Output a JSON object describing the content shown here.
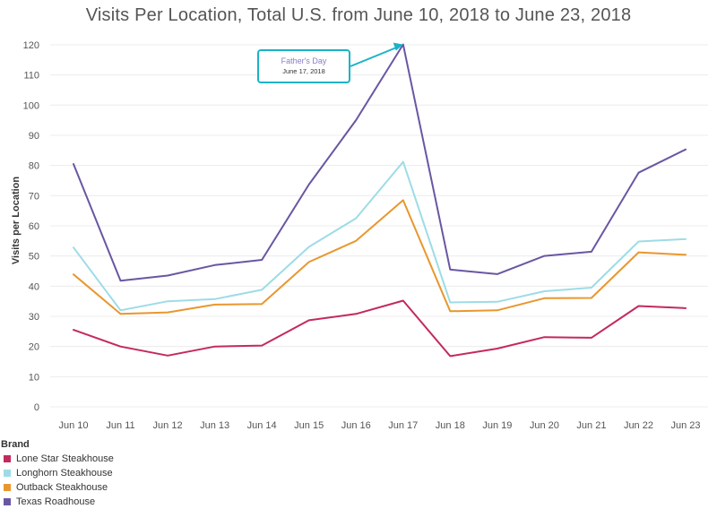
{
  "chart_data": {
    "type": "line",
    "title": "Visits Per Location, Total U.S. from June 10, 2018 to June 23, 2018",
    "xlabel": "",
    "ylabel": "Visits per Location",
    "categories": [
      "Jun 10",
      "Jun 11",
      "Jun 12",
      "Jun 13",
      "Jun 14",
      "Jun 15",
      "Jun 16",
      "Jun 17",
      "Jun 18",
      "Jun 19",
      "Jun 20",
      "Jun 21",
      "Jun 22",
      "Jun 23"
    ],
    "yticks": [
      0,
      10,
      20,
      30,
      40,
      50,
      60,
      70,
      80,
      90,
      100,
      110,
      120
    ],
    "ylim": [
      0,
      125
    ],
    "grid": true,
    "legend_title": "Brand",
    "legend_position": "bottom-left",
    "series": [
      {
        "name": "Lone Star Steakhouse",
        "color": "#c4295e",
        "values": [
          25.5,
          20,
          17,
          20,
          20.3,
          28.7,
          30.8,
          35.2,
          16.8,
          19.3,
          23.1,
          22.9,
          33.4,
          32.7
        ]
      },
      {
        "name": "Longhorn Steakhouse",
        "color": "#9ddce6",
        "values": [
          52.8,
          32,
          35,
          35.7,
          38.8,
          53,
          62.5,
          81.2,
          34.6,
          34.8,
          38.3,
          39.5,
          54.8,
          55.6
        ]
      },
      {
        "name": "Outback Steakhouse",
        "color": "#e8972f",
        "values": [
          43.9,
          30.8,
          31.3,
          33.9,
          34.1,
          48,
          55,
          68.5,
          31.7,
          32,
          36,
          36.1,
          51.2,
          50.4
        ]
      },
      {
        "name": "Texas Roadhouse",
        "color": "#6a56a2",
        "values": [
          80.5,
          41.8,
          43.5,
          47,
          48.7,
          73.7,
          95,
          120.1,
          45.5,
          44,
          50,
          51.4,
          77.6,
          85.3
        ]
      }
    ],
    "annotations": [
      {
        "title": "Father's Day",
        "date": "June 17, 2018",
        "category": "Jun 17",
        "value": 120.1,
        "color": "#1ab3c6"
      }
    ]
  }
}
